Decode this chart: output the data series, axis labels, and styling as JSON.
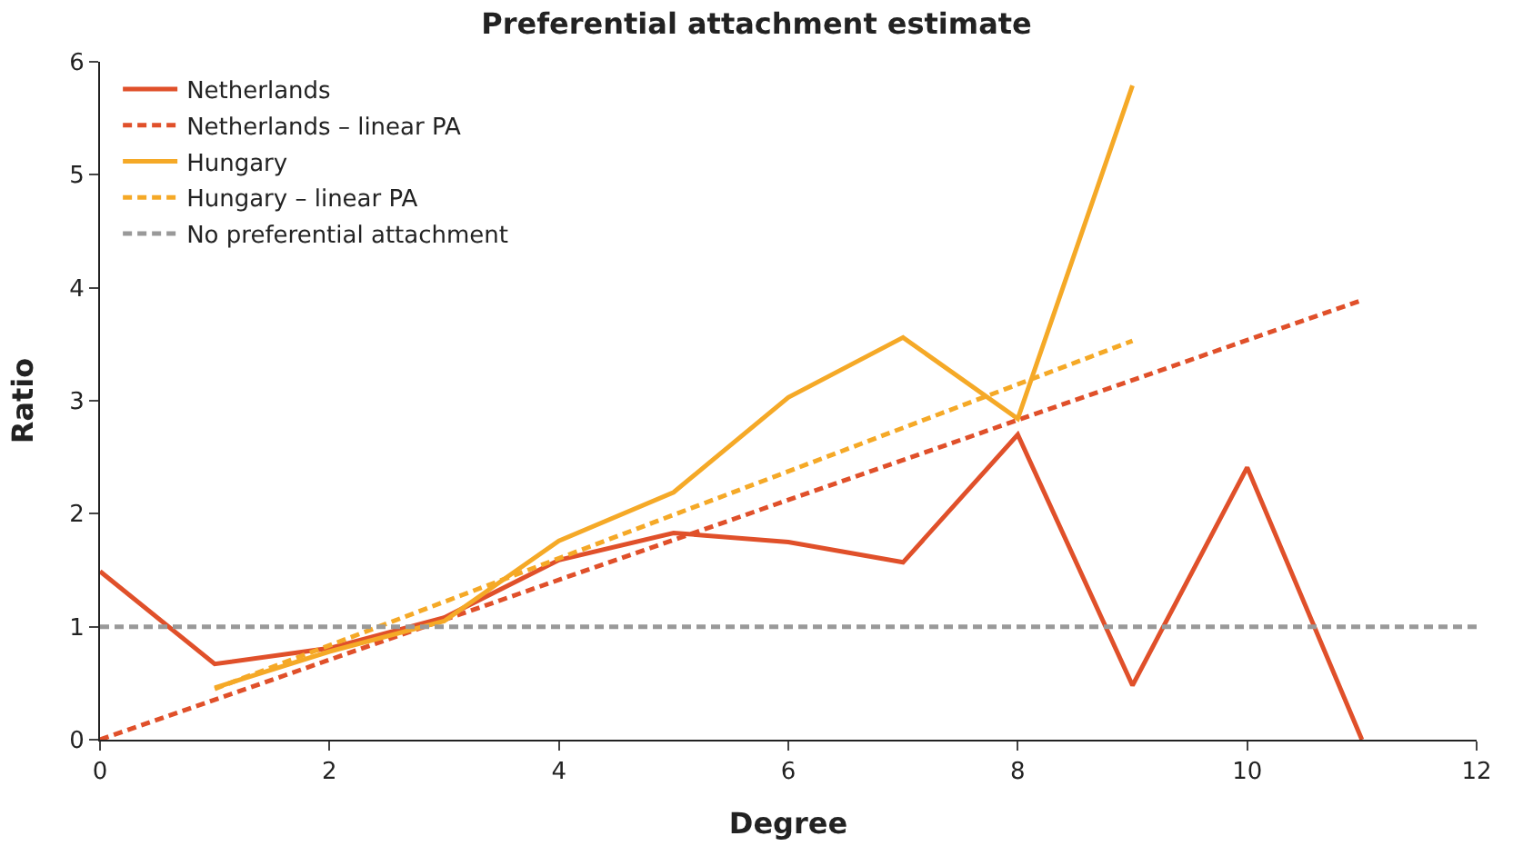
{
  "chart_data": {
    "type": "line",
    "title": "Preferential attachment estimate",
    "xlabel": "Degree",
    "ylabel": "Ratio",
    "xlim": [
      0,
      12
    ],
    "xticks": [
      0,
      2,
      4,
      6,
      8,
      10,
      12
    ],
    "ylim": [
      0,
      6
    ],
    "yticks": [
      0,
      1,
      2,
      3,
      4,
      5,
      6
    ],
    "legend": "top left",
    "marker": "none",
    "series": [
      {
        "name": "Netherlands",
        "color": "#e0502a",
        "line_style": "solid",
        "x": [
          0,
          1,
          2,
          3,
          4,
          5,
          6,
          7,
          8,
          9,
          10,
          11
        ],
        "values": [
          1.49,
          0.67,
          0.81,
          1.08,
          1.59,
          1.83,
          1.75,
          1.57,
          2.7,
          0.48,
          2.41,
          0
        ]
      },
      {
        "name": "Netherlands – linear PA",
        "color": "#e0502a",
        "line_style": "dashed",
        "x": [
          0,
          11
        ],
        "values": [
          0,
          3.89
        ]
      },
      {
        "name": "Hungary",
        "color": "#f5a927",
        "line_style": "solid",
        "x": [
          1,
          2,
          3,
          4,
          5,
          6,
          7,
          8,
          9
        ],
        "values": [
          0.46,
          0.78,
          1.05,
          1.76,
          2.19,
          3.03,
          3.56,
          2.84,
          5.79
        ]
      },
      {
        "name": "Hungary – linear PA",
        "color": "#f5a927",
        "line_style": "dashed",
        "x": [
          1,
          9
        ],
        "values": [
          0.45,
          3.53
        ]
      },
      {
        "name": "No preferential attachment",
        "color": "#999999",
        "line_style": "dashed",
        "x": [
          0,
          12
        ],
        "values": [
          1,
          1
        ]
      }
    ]
  }
}
